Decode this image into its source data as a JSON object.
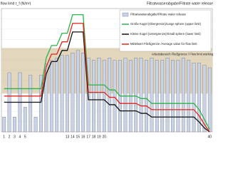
{
  "chart_data": {
    "type": "bar-line",
    "y_label": "flow limit τ_f (N/m²)",
    "y2_label": "Filtratwasserabgabe/Filtrate water release",
    "categories": [
      "1",
      "2",
      "3",
      "4",
      "5",
      null,
      null,
      null,
      null,
      null,
      null,
      null,
      "13",
      "14",
      "15",
      "16",
      "17",
      "18",
      "19",
      "20",
      null,
      null,
      null,
      null,
      null,
      null,
      null,
      null,
      null,
      null,
      null,
      null,
      null,
      null,
      null,
      null,
      null,
      null,
      null,
      "40"
    ],
    "ylim": [
      0,
      100
    ],
    "band": {
      "range": [
        31,
        68
      ],
      "label": "Arbeitsbereich Fließgrenze / Flow limit working range",
      "color": "#e2d6bd"
    },
    "bar_series": {
      "name": "Filtratwasserabgabe/Filtrate water release",
      "color": "#c9d3e6",
      "values": [
        12,
        48,
        12,
        48,
        20,
        46,
        12,
        46,
        55,
        58,
        60,
        62,
        62,
        64,
        66,
        64,
        60,
        58,
        60,
        58,
        60,
        58,
        58,
        60,
        58,
        60,
        60,
        58,
        60,
        58,
        58,
        60,
        58,
        58,
        60,
        58,
        56,
        56,
        54,
        52
      ]
    },
    "series": [
      {
        "name": "Große Kugel (Obergrenze)/Large sphere (upper limit)",
        "color": "#2db34a",
        "values": [
          35,
          35,
          35,
          35,
          35,
          35,
          35,
          35,
          60,
          70,
          70,
          80,
          80,
          95,
          95,
          95,
          38,
          38,
          38,
          38,
          34,
          34,
          29,
          29,
          29,
          29,
          27,
          27,
          23,
          23,
          23,
          23,
          23,
          23,
          23,
          23,
          23,
          18,
          10,
          2
        ]
      },
      {
        "name": "Kleine Kugel (Untergrenze)/Small sphere (lower limit)",
        "color": "#111111",
        "values": [
          24,
          24,
          24,
          24,
          24,
          24,
          24,
          24,
          47,
          57,
          57,
          66,
          66,
          81,
          81,
          81,
          26,
          26,
          26,
          26,
          22,
          22,
          17,
          17,
          17,
          17,
          15,
          15,
          12,
          12,
          12,
          12,
          12,
          12,
          12,
          12,
          12,
          8,
          3,
          0
        ]
      },
      {
        "name": "Mittelwert Fließgrenze /Average value for flow limit",
        "color": "#e0261c",
        "values": [
          29,
          29,
          29,
          29,
          29,
          29,
          29,
          29,
          53,
          63,
          63,
          73,
          73,
          88,
          88,
          88,
          32,
          32,
          32,
          32,
          28,
          28,
          23,
          23,
          23,
          23,
          21,
          21,
          18,
          18,
          18,
          18,
          18,
          18,
          18,
          18,
          18,
          13,
          6,
          0
        ]
      }
    ]
  }
}
